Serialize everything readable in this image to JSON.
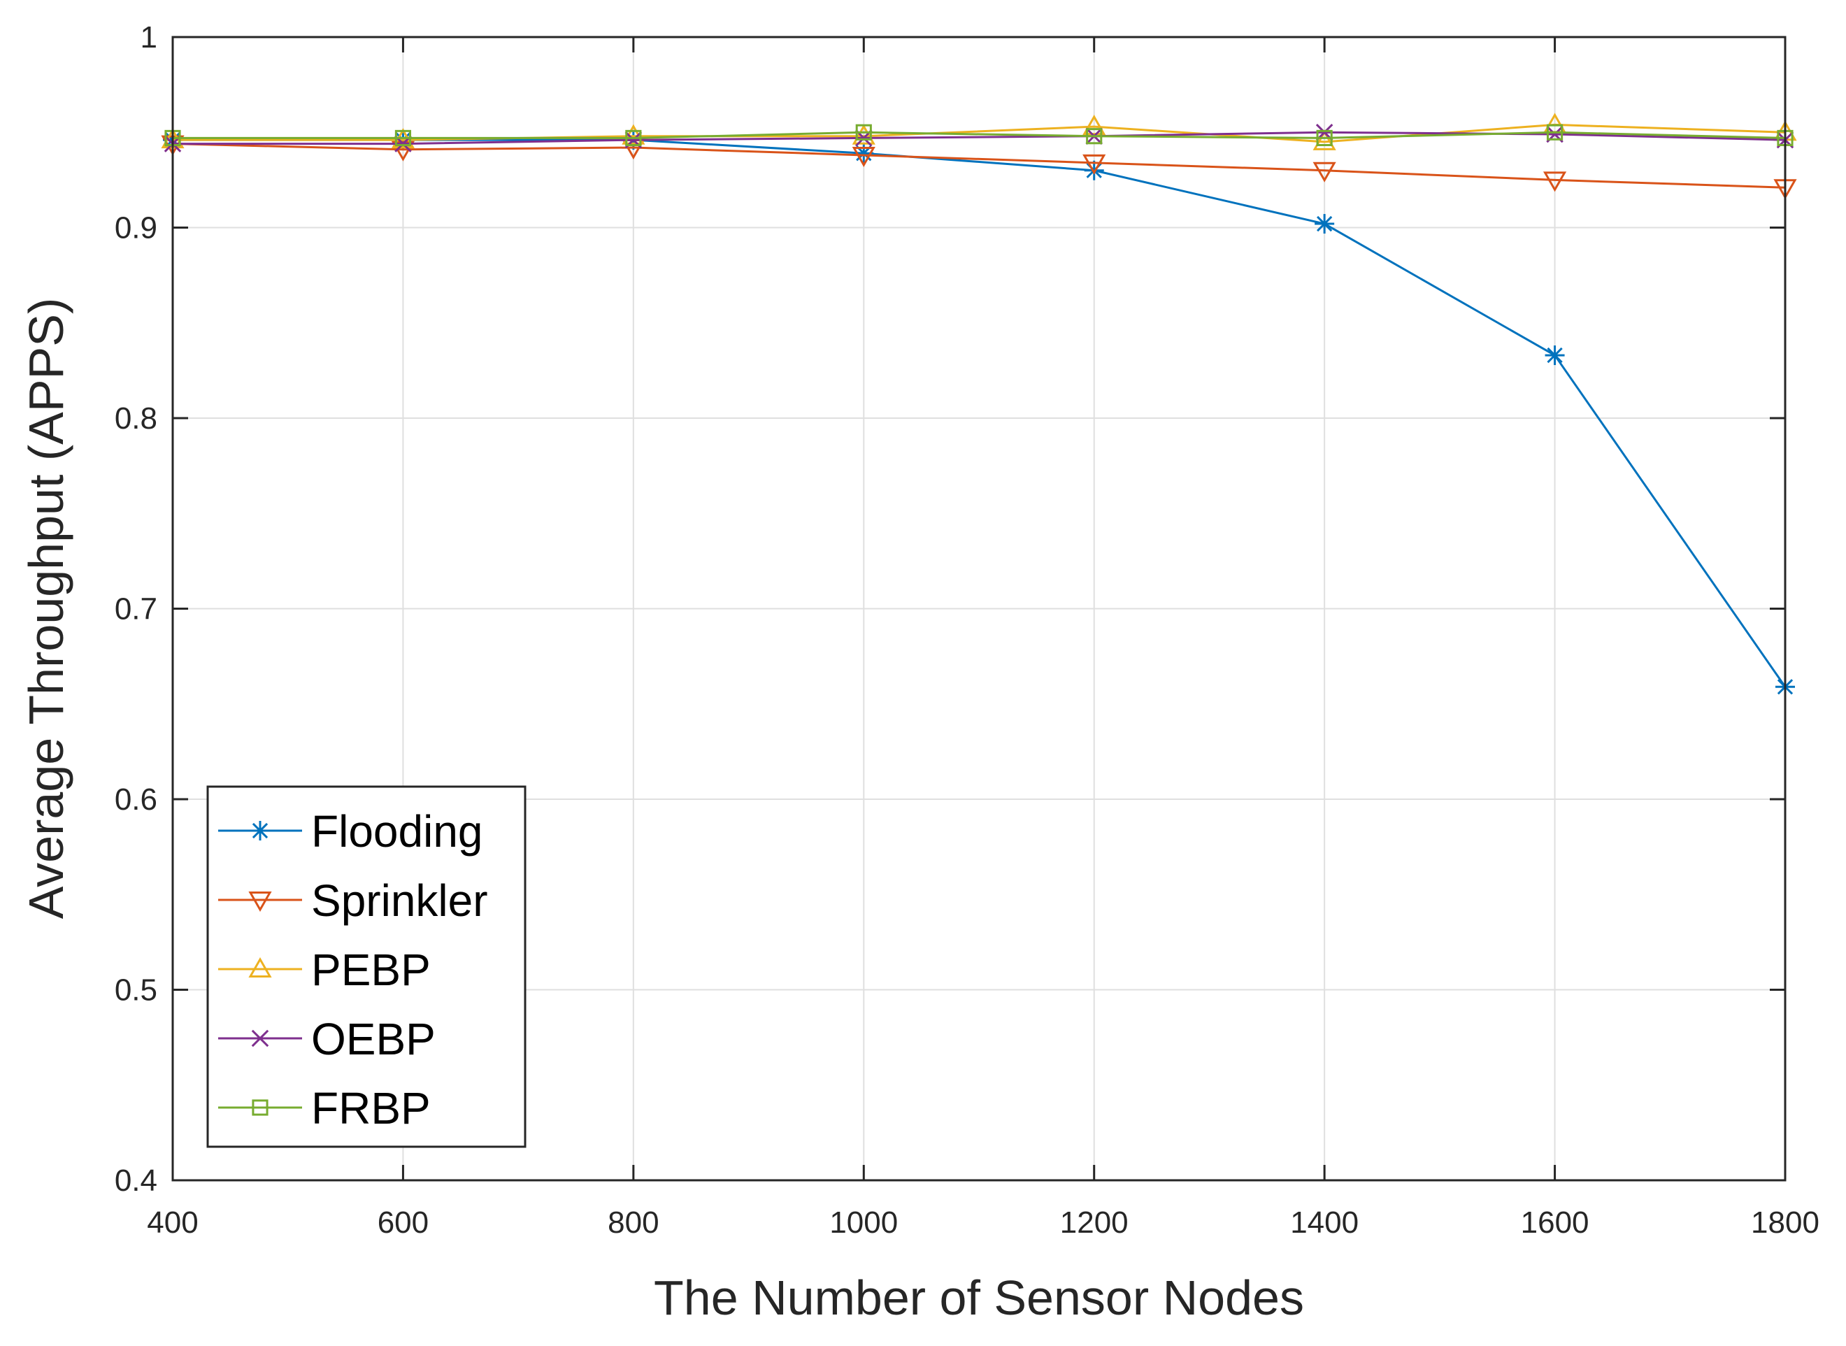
{
  "chart_data": {
    "type": "line",
    "title": "",
    "xlabel": "The Number of Sensor Nodes",
    "ylabel": "Average Throughput (APPS)",
    "x": [
      400,
      600,
      800,
      1000,
      1200,
      1400,
      1600,
      1800
    ],
    "xlim": [
      400,
      1800
    ],
    "ylim": [
      0.4,
      1.0
    ],
    "xticks": [
      400,
      600,
      800,
      1000,
      1200,
      1400,
      1600,
      1800
    ],
    "yticks": [
      0.4,
      0.5,
      0.6,
      0.7,
      0.8,
      0.9,
      1.0
    ],
    "xtick_labels": [
      "400",
      "600",
      "800",
      "1000",
      "1200",
      "1400",
      "1600",
      "1800"
    ],
    "ytick_labels": [
      "0.4",
      "0.5",
      "0.6",
      "0.7",
      "0.8",
      "0.9",
      "1"
    ],
    "grid": true,
    "legend_position": "bottom-left",
    "series": [
      {
        "name": "Flooding",
        "color": "#0072BD",
        "marker": "asterisk",
        "values": [
          0.946,
          0.946,
          0.946,
          0.939,
          0.93,
          0.902,
          0.833,
          0.659
        ]
      },
      {
        "name": "Sprinkler",
        "color": "#D95319",
        "marker": "triangle-down",
        "values": [
          0.944,
          0.941,
          0.942,
          0.938,
          0.934,
          0.93,
          0.925,
          0.921
        ]
      },
      {
        "name": "PEBP",
        "color": "#EDB120",
        "marker": "triangle-up",
        "values": [
          0.946,
          0.946,
          0.948,
          0.948,
          0.953,
          0.945,
          0.954,
          0.95
        ]
      },
      {
        "name": "OEBP",
        "color": "#7E2F8E",
        "marker": "x",
        "values": [
          0.944,
          0.944,
          0.946,
          0.947,
          0.948,
          0.95,
          0.949,
          0.946
        ]
      },
      {
        "name": "FRBP",
        "color": "#77AC30",
        "marker": "square",
        "values": [
          0.947,
          0.947,
          0.947,
          0.95,
          0.948,
          0.947,
          0.95,
          0.947
        ]
      }
    ]
  }
}
